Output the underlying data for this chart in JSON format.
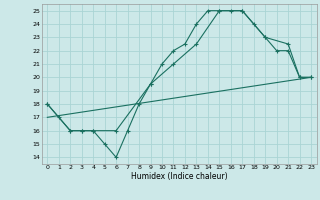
{
  "xlabel": "Humidex (Indice chaleur)",
  "bg_color": "#cce8e8",
  "grid_color": "#aad4d4",
  "line_color": "#1a7060",
  "xlim": [
    -0.5,
    23.5
  ],
  "ylim": [
    13.5,
    25.5
  ],
  "xticks": [
    0,
    1,
    2,
    3,
    4,
    5,
    6,
    7,
    8,
    9,
    10,
    11,
    12,
    13,
    14,
    15,
    16,
    17,
    18,
    19,
    20,
    21,
    22,
    23
  ],
  "yticks": [
    14,
    15,
    16,
    17,
    18,
    19,
    20,
    21,
    22,
    23,
    24,
    25
  ],
  "lines": [
    {
      "x": [
        0,
        1,
        2,
        3,
        4,
        5,
        6,
        7,
        8,
        9,
        10,
        11,
        12,
        13,
        14,
        15,
        16,
        17,
        18,
        19,
        20,
        21,
        22,
        23
      ],
      "y": [
        18,
        17,
        16,
        16,
        16,
        15,
        14,
        16,
        18,
        19.5,
        21,
        22,
        22.5,
        24,
        25,
        25,
        25,
        25,
        24,
        23,
        22,
        22,
        20,
        20
      ],
      "marker": true
    },
    {
      "x": [
        0,
        2,
        3,
        4,
        6,
        9,
        11,
        13,
        15,
        17,
        19,
        21,
        22,
        23
      ],
      "y": [
        18,
        16,
        16,
        16,
        16,
        19.5,
        21,
        22.5,
        25,
        25,
        23,
        22.5,
        20,
        20
      ],
      "marker": true
    },
    {
      "x": [
        0,
        23
      ],
      "y": [
        17,
        20
      ],
      "marker": false
    }
  ]
}
